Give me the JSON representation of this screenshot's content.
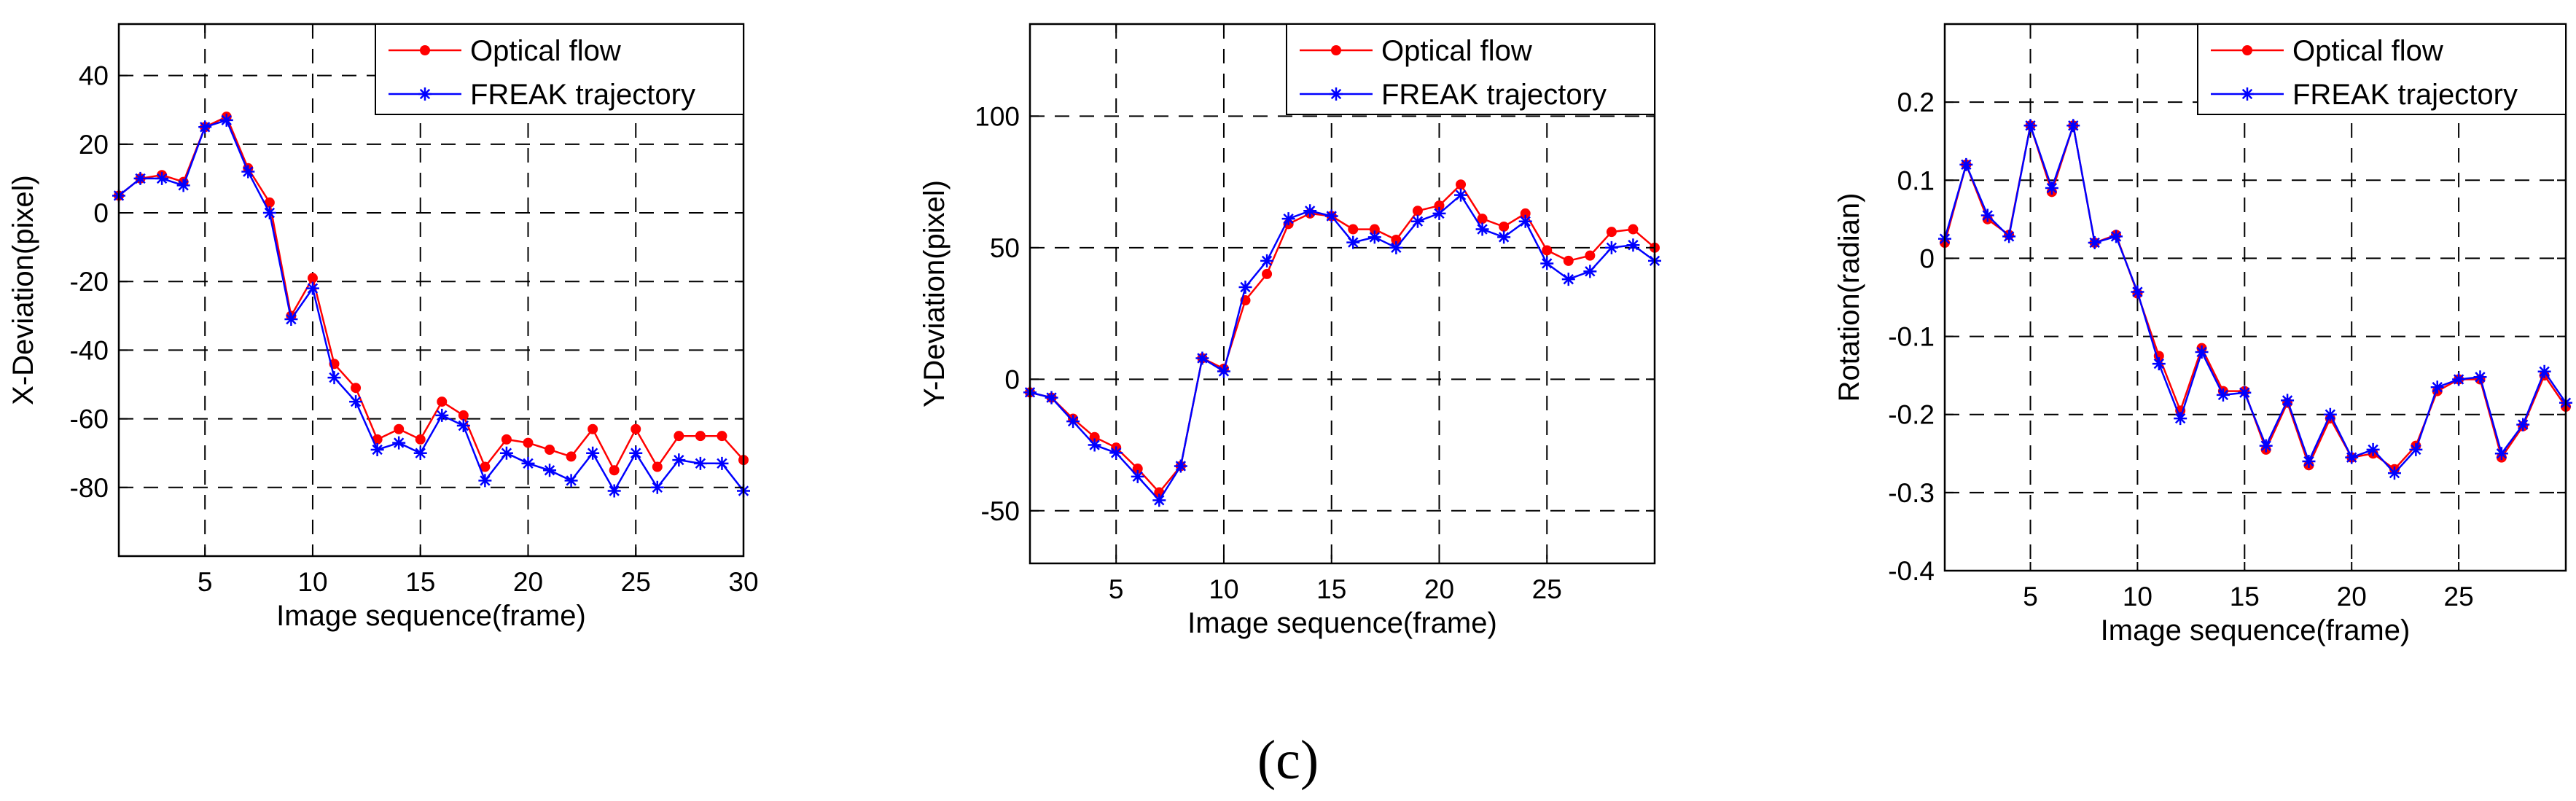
{
  "figure": {
    "caption": "(c)"
  },
  "chart_data": [
    {
      "type": "line",
      "title": "",
      "xlabel": "Image sequence(frame)",
      "ylabel": "X-Deviation(pixel)",
      "xlim": [
        1,
        30
      ],
      "ylim": [
        -100,
        55
      ],
      "xticks": [
        5,
        10,
        15,
        20,
        25,
        30
      ],
      "xtick_labels": [
        "5",
        "10",
        "15",
        "20",
        "25",
        "30"
      ],
      "yticks": [
        -80,
        -60,
        -40,
        -20,
        0,
        20,
        40
      ],
      "ytick_labels": [
        "-80",
        "-60",
        "-40",
        "-20",
        "0",
        "20",
        "40"
      ],
      "grid": true,
      "legend": "top-right",
      "x": [
        1,
        2,
        3,
        4,
        5,
        6,
        7,
        8,
        9,
        10,
        11,
        12,
        13,
        14,
        15,
        16,
        17,
        18,
        19,
        20,
        21,
        22,
        23,
        24,
        25,
        26,
        27,
        28,
        29,
        30
      ],
      "series": [
        {
          "name": "Optical flow",
          "color": "#ff0000",
          "marker": "dot",
          "values": [
            5,
            10,
            11,
            9,
            25,
            28,
            13,
            3,
            -30,
            -19,
            -44,
            -51,
            -66,
            -63,
            -66,
            -55,
            -59,
            -74,
            -66,
            -67,
            -69,
            -71,
            -63,
            -75,
            -63,
            -74,
            -65,
            -65,
            -65,
            -72
          ]
        },
        {
          "name": "FREAK trajectory",
          "color": "#0000ff",
          "marker": "star",
          "values": [
            5,
            10,
            10,
            8,
            25,
            27,
            12,
            0,
            -31,
            -22,
            -48,
            -55,
            -69,
            -67,
            -70,
            -59,
            -62,
            -78,
            -70,
            -73,
            -75,
            -78,
            -70,
            -81,
            -70,
            -80,
            -72,
            -73,
            -73,
            -81
          ]
        }
      ]
    },
    {
      "type": "line",
      "title": "",
      "xlabel": "Image sequence(frame)",
      "ylabel": "Y-Deviation(pixel)",
      "xlim": [
        1,
        30
      ],
      "ylim": [
        -70,
        135
      ],
      "xticks": [
        5,
        10,
        15,
        20,
        25
      ],
      "xtick_labels": [
        "5",
        "10",
        "15",
        "20",
        "25"
      ],
      "yticks": [
        -50,
        0,
        50,
        100
      ],
      "ytick_labels": [
        "-50",
        "0",
        "50",
        "100"
      ],
      "grid": true,
      "legend": "top-right",
      "x": [
        1,
        2,
        3,
        4,
        5,
        6,
        7,
        8,
        9,
        10,
        11,
        12,
        13,
        14,
        15,
        16,
        17,
        18,
        19,
        20,
        21,
        22,
        23,
        24,
        25,
        26,
        27,
        28,
        29,
        30
      ],
      "series": [
        {
          "name": "Optical flow",
          "color": "#ff0000",
          "marker": "dot",
          "values": [
            -5,
            -7,
            -15,
            -22,
            -26,
            -34,
            -43,
            -33,
            8,
            4,
            30,
            40,
            59,
            63,
            62,
            57,
            57,
            53,
            64,
            66,
            74,
            61,
            58,
            63,
            49,
            45,
            47,
            56,
            57,
            50
          ]
        },
        {
          "name": "FREAK trajectory",
          "color": "#0000ff",
          "marker": "star",
          "values": [
            -5,
            -7,
            -16,
            -25,
            -28,
            -37,
            -46,
            -33,
            8,
            3,
            35,
            45,
            61,
            64,
            62,
            52,
            54,
            50,
            60,
            63,
            70,
            57,
            54,
            60,
            44,
            38,
            41,
            50,
            51,
            45
          ]
        }
      ]
    },
    {
      "type": "line",
      "title": "",
      "xlabel": "Image sequence(frame)",
      "ylabel": "Rotation(radian)",
      "xlim": [
        1,
        30
      ],
      "ylim": [
        -0.4,
        0.3
      ],
      "xticks": [
        5,
        10,
        15,
        20,
        25
      ],
      "xtick_labels": [
        "5",
        "10",
        "15",
        "20",
        "25"
      ],
      "yticks": [
        -0.4,
        -0.3,
        -0.2,
        -0.1,
        0,
        0.1,
        0.2
      ],
      "ytick_labels": [
        "-0.4",
        "-0.3",
        "-0.2",
        "-0.1",
        "0",
        "0.1",
        "0.2"
      ],
      "grid": true,
      "legend": "top-right",
      "x": [
        1,
        2,
        3,
        4,
        5,
        6,
        7,
        8,
        9,
        10,
        11,
        12,
        13,
        14,
        15,
        16,
        17,
        18,
        19,
        20,
        21,
        22,
        23,
        24,
        25,
        26,
        27,
        28,
        29,
        30
      ],
      "series": [
        {
          "name": "Optical flow",
          "color": "#ff0000",
          "marker": "dot",
          "values": [
            0.02,
            0.12,
            0.05,
            0.03,
            0.17,
            0.085,
            0.17,
            0.02,
            0.03,
            -0.045,
            -0.125,
            -0.195,
            -0.115,
            -0.17,
            -0.17,
            -0.245,
            -0.185,
            -0.265,
            -0.205,
            -0.255,
            -0.25,
            -0.27,
            -0.24,
            -0.17,
            -0.155,
            -0.155,
            -0.255,
            -0.215,
            -0.15,
            -0.19
          ]
        },
        {
          "name": "FREAK trajectory",
          "color": "#0000ff",
          "marker": "star",
          "values": [
            0.025,
            0.12,
            0.055,
            0.028,
            0.17,
            0.09,
            0.17,
            0.02,
            0.028,
            -0.043,
            -0.135,
            -0.205,
            -0.12,
            -0.175,
            -0.172,
            -0.24,
            -0.182,
            -0.26,
            -0.2,
            -0.255,
            -0.245,
            -0.275,
            -0.245,
            -0.165,
            -0.155,
            -0.152,
            -0.25,
            -0.213,
            -0.145,
            -0.185
          ]
        }
      ]
    }
  ]
}
